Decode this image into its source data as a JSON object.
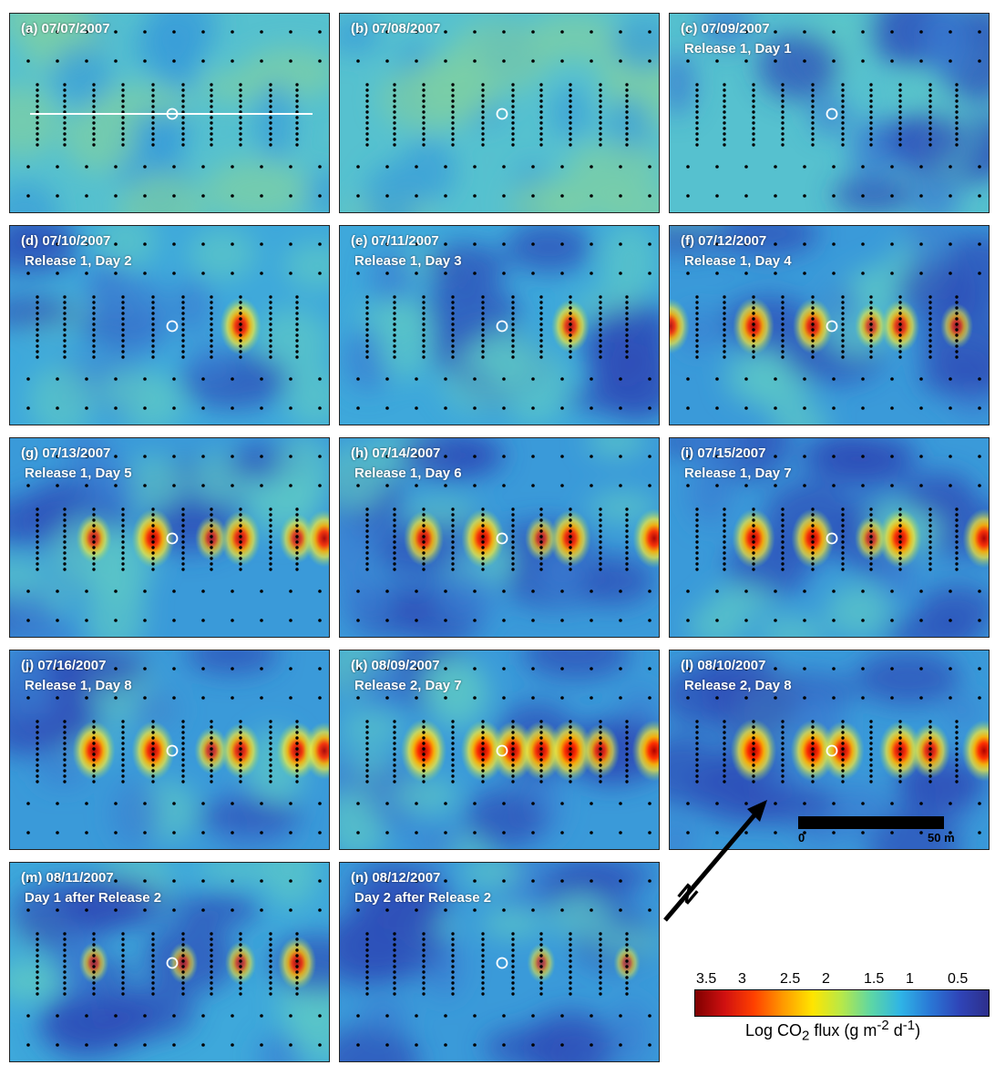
{
  "panels": [
    {
      "letter": "(a)",
      "date": "07/07/2007",
      "subtitle": "",
      "hotspots": [],
      "base": 0.55
    },
    {
      "letter": "(b)",
      "date": "07/08/2007",
      "subtitle": "",
      "hotspots": [],
      "base": 0.55
    },
    {
      "letter": "(c)",
      "date": "07/09/2007",
      "subtitle": "Release 1, Day 1",
      "hotspots": [],
      "base": 0.6
    },
    {
      "letter": "(d)",
      "date": "07/10/2007",
      "subtitle": "Release 1, Day 2",
      "hotspots": [
        {
          "pos": 7,
          "strength": 0.8
        }
      ],
      "base": 0.65
    },
    {
      "letter": "(e)",
      "date": "07/11/2007",
      "subtitle": "Release 1, Day 3",
      "hotspots": [
        {
          "pos": 7,
          "strength": 0.7
        }
      ],
      "base": 0.65
    },
    {
      "letter": "(f)",
      "date": "07/12/2007",
      "subtitle": "Release 1, Day 4",
      "hotspots": [
        {
          "pos": 2,
          "strength": 0.8
        },
        {
          "pos": 4,
          "strength": 0.75
        },
        {
          "pos": 6,
          "strength": 0.5
        },
        {
          "pos": 7,
          "strength": 0.7
        },
        {
          "pos": 9,
          "strength": 0.5
        },
        {
          "pos": 11,
          "strength": 0.75
        }
      ],
      "base": 0.72
    },
    {
      "letter": "(g)",
      "date": "07/13/2007",
      "subtitle": "Release 1, Day 5",
      "hotspots": [
        {
          "pos": 2,
          "strength": 0.6
        },
        {
          "pos": 4,
          "strength": 0.85
        },
        {
          "pos": 6,
          "strength": 0.5
        },
        {
          "pos": 7,
          "strength": 0.75
        },
        {
          "pos": 9,
          "strength": 0.6
        },
        {
          "pos": 10,
          "strength": 0.8
        }
      ],
      "base": 0.72
    },
    {
      "letter": "(h)",
      "date": "07/14/2007",
      "subtitle": "Release 1, Day 6",
      "hotspots": [
        {
          "pos": 2,
          "strength": 0.75
        },
        {
          "pos": 4,
          "strength": 0.85
        },
        {
          "pos": 6,
          "strength": 0.5
        },
        {
          "pos": 7,
          "strength": 0.8
        },
        {
          "pos": 10,
          "strength": 0.85
        }
      ],
      "base": 0.72
    },
    {
      "letter": "(i)",
      "date": "07/15/2007",
      "subtitle": "Release 1, Day 7",
      "hotspots": [
        {
          "pos": 2,
          "strength": 0.85
        },
        {
          "pos": 4,
          "strength": 0.85
        },
        {
          "pos": 6,
          "strength": 0.5
        },
        {
          "pos": 7,
          "strength": 0.85
        },
        {
          "pos": 10,
          "strength": 0.85
        }
      ],
      "base": 0.72
    },
    {
      "letter": "(j)",
      "date": "07/16/2007",
      "subtitle": "Release 1, Day 8",
      "hotspots": [
        {
          "pos": 2,
          "strength": 0.85
        },
        {
          "pos": 4,
          "strength": 0.85
        },
        {
          "pos": 6,
          "strength": 0.55
        },
        {
          "pos": 7,
          "strength": 0.75
        },
        {
          "pos": 9,
          "strength": 0.8
        },
        {
          "pos": 10,
          "strength": 0.8
        }
      ],
      "base": 0.72
    },
    {
      "letter": "(k)",
      "date": "08/09/2007",
      "subtitle": "Release 2, Day 7",
      "hotspots": [
        {
          "pos": 2,
          "strength": 0.95
        },
        {
          "pos": 4,
          "strength": 0.9
        },
        {
          "pos": 5,
          "strength": 0.85
        },
        {
          "pos": 6,
          "strength": 0.85
        },
        {
          "pos": 7,
          "strength": 0.9
        },
        {
          "pos": 8,
          "strength": 0.7
        },
        {
          "pos": 10,
          "strength": 0.9
        }
      ],
      "base": 0.72
    },
    {
      "letter": "(l)",
      "date": "08/10/2007",
      "subtitle": "Release 2, Day 8",
      "hotspots": [
        {
          "pos": 2,
          "strength": 0.95
        },
        {
          "pos": 4,
          "strength": 0.9
        },
        {
          "pos": 5,
          "strength": 0.85
        },
        {
          "pos": 7,
          "strength": 0.85
        },
        {
          "pos": 8,
          "strength": 0.75
        },
        {
          "pos": 10,
          "strength": 0.9
        }
      ],
      "base": 0.72
    },
    {
      "letter": "(m)",
      "date": "08/11/2007",
      "subtitle": "Day 1 after Release 2",
      "hotspots": [
        {
          "pos": 2,
          "strength": 0.4
        },
        {
          "pos": 5,
          "strength": 0.4
        },
        {
          "pos": 7,
          "strength": 0.45
        },
        {
          "pos": 9,
          "strength": 0.7
        }
      ],
      "base": 0.7
    },
    {
      "letter": "(n)",
      "date": "08/12/2007",
      "subtitle": "Day 2 after Release 2",
      "hotspots": [
        {
          "pos": 6,
          "strength": 0.35
        },
        {
          "pos": 9,
          "strength": 0.3
        }
      ],
      "base": 0.72
    }
  ],
  "scale_bar": {
    "start_label": "0",
    "end_label": "50 m"
  },
  "north_label": "N",
  "colorbar": {
    "ticks": [
      "3.5",
      "3",
      "2.5",
      "2",
      "1.5",
      "1",
      "0.5"
    ],
    "title": "Log CO",
    "title_sub": "2",
    "title_rest": " flux (g m",
    "title_exp1": "-2",
    "title_mid": " d",
    "title_exp2": "-1",
    "title_end": ")"
  }
}
